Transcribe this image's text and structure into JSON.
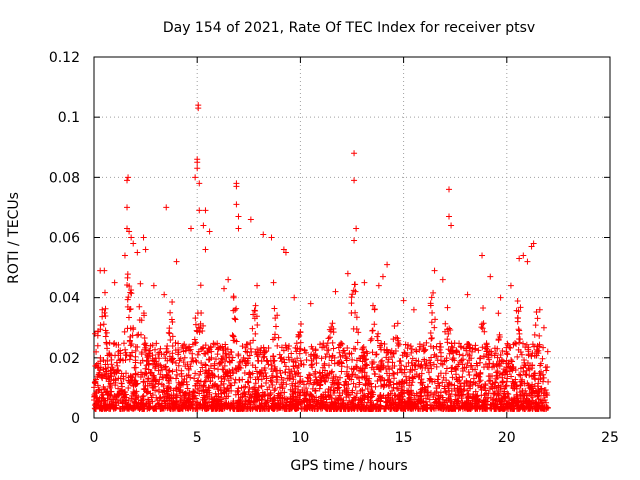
{
  "chart_data": {
    "type": "scatter",
    "title": "Day 154 of 2021, Rate Of TEC Index for receiver ptsv",
    "xlabel": "GPS time / hours",
    "ylabel": "ROTI / TECUs",
    "xlim": [
      0,
      25
    ],
    "ylim": [
      0,
      0.12
    ],
    "xticks": [
      "0",
      "5",
      "10",
      "15",
      "20",
      "25"
    ],
    "xtick_values": [
      0,
      5,
      10,
      15,
      20,
      25
    ],
    "yticks": [
      "0",
      "0.02",
      "0.04",
      "0.06",
      "0.08",
      "0.1",
      "0.12"
    ],
    "ytick_values": [
      0,
      0.02,
      0.04,
      0.06,
      0.08,
      0.1,
      0.12
    ],
    "grid": true,
    "marker": "plus",
    "color": "#ff0000",
    "series": [
      {
        "points": [
          [
            0.3,
            0.049
          ],
          [
            0.5,
            0.049
          ],
          [
            0.4,
            0.036
          ],
          [
            1.0,
            0.045
          ],
          [
            1.5,
            0.054
          ],
          [
            1.6,
            0.063
          ],
          [
            1.6,
            0.07
          ],
          [
            1.6,
            0.079
          ],
          [
            1.65,
            0.08
          ],
          [
            1.7,
            0.062
          ],
          [
            1.8,
            0.06
          ],
          [
            1.9,
            0.058
          ],
          [
            2.1,
            0.055
          ],
          [
            2.4,
            0.06
          ],
          [
            2.5,
            0.056
          ],
          [
            3.5,
            0.07
          ],
          [
            4.0,
            0.052
          ],
          [
            4.7,
            0.063
          ],
          [
            4.9,
            0.08
          ],
          [
            5.0,
            0.086
          ],
          [
            5.0,
            0.085
          ],
          [
            5.0,
            0.083
          ],
          [
            5.05,
            0.104
          ],
          [
            5.05,
            0.103
          ],
          [
            5.1,
            0.078
          ],
          [
            5.1,
            0.069
          ],
          [
            5.4,
            0.069
          ],
          [
            5.3,
            0.064
          ],
          [
            5.4,
            0.056
          ],
          [
            5.6,
            0.062
          ],
          [
            6.9,
            0.078
          ],
          [
            6.9,
            0.077
          ],
          [
            6.9,
            0.071
          ],
          [
            7.0,
            0.067
          ],
          [
            7.0,
            0.063
          ],
          [
            7.6,
            0.066
          ],
          [
            8.2,
            0.061
          ],
          [
            8.6,
            0.06
          ],
          [
            9.2,
            0.056
          ],
          [
            9.3,
            0.055
          ],
          [
            12.6,
            0.088
          ],
          [
            12.6,
            0.079
          ],
          [
            12.7,
            0.063
          ],
          [
            12.6,
            0.059
          ],
          [
            17.2,
            0.076
          ],
          [
            17.2,
            0.067
          ],
          [
            17.3,
            0.064
          ],
          [
            18.8,
            0.054
          ],
          [
            19.2,
            0.047
          ],
          [
            20.6,
            0.053
          ],
          [
            20.8,
            0.054
          ],
          [
            21.0,
            0.052
          ],
          [
            21.3,
            0.058
          ],
          [
            21.2,
            0.057
          ],
          [
            12.3,
            0.048
          ],
          [
            13.1,
            0.045
          ],
          [
            13.8,
            0.044
          ],
          [
            14.0,
            0.047
          ],
          [
            14.2,
            0.051
          ],
          [
            16.5,
            0.049
          ],
          [
            16.9,
            0.046
          ],
          [
            11.7,
            0.042
          ],
          [
            10.5,
            0.038
          ],
          [
            2.9,
            0.044
          ],
          [
            3.4,
            0.041
          ],
          [
            6.3,
            0.043
          ],
          [
            6.5,
            0.046
          ],
          [
            7.9,
            0.044
          ],
          [
            8.7,
            0.045
          ],
          [
            9.7,
            0.04
          ],
          [
            15.0,
            0.039
          ],
          [
            15.5,
            0.036
          ],
          [
            18.1,
            0.041
          ],
          [
            19.7,
            0.04
          ],
          [
            20.2,
            0.044
          ],
          [
            21.6,
            0.036
          ],
          [
            21.8,
            0.03
          ],
          [
            22.0,
            0.012
          ],
          [
            0.05,
            0.028
          ],
          [
            0.1,
            0.022
          ],
          [
            0.0,
            0.006
          ]
        ]
      }
    ]
  }
}
